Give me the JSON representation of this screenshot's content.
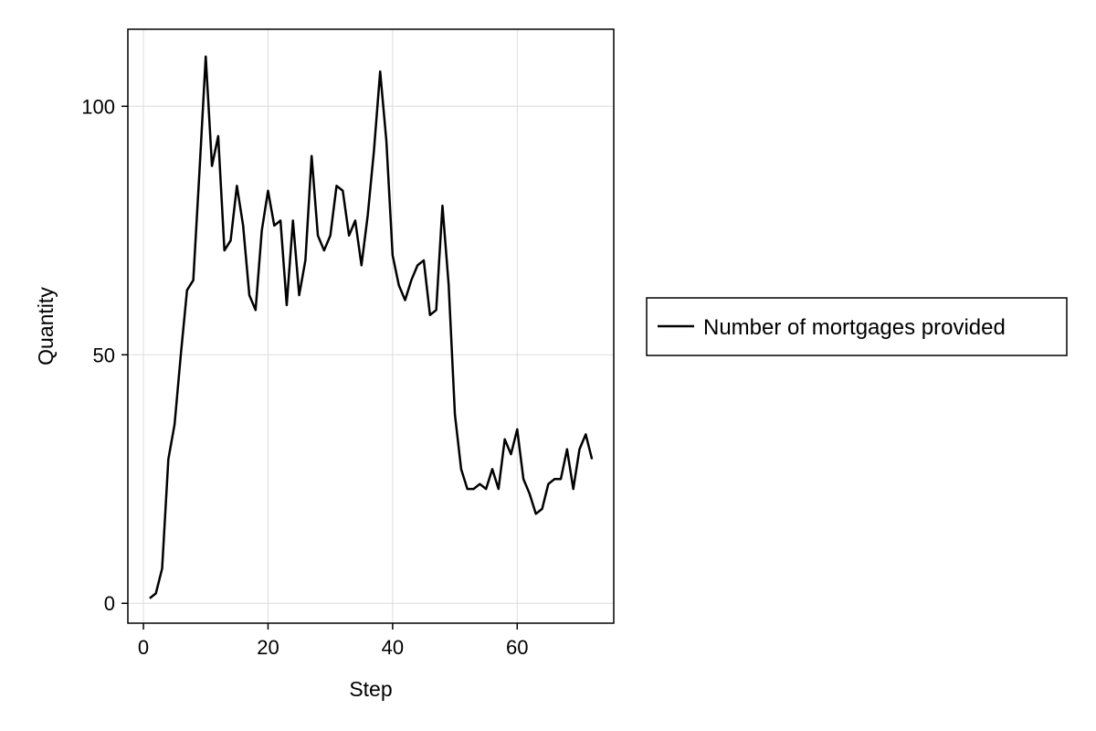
{
  "chart_data": {
    "type": "line",
    "title": "",
    "xlabel": "Step",
    "ylabel": "Quantity",
    "xlim": [
      -2.5,
      75.5
    ],
    "ylim": [
      -4,
      115.5
    ],
    "x_ticks": [
      0,
      20,
      40,
      60
    ],
    "y_ticks": [
      0,
      50,
      100
    ],
    "grid": true,
    "legend_position": "right",
    "series": [
      {
        "name": "Number of mortgages provided",
        "color": "#000000",
        "x": [
          1,
          2,
          3,
          4,
          5,
          6,
          7,
          8,
          9,
          10,
          11,
          12,
          13,
          14,
          15,
          16,
          17,
          18,
          19,
          20,
          21,
          22,
          23,
          24,
          25,
          26,
          27,
          28,
          29,
          30,
          31,
          32,
          33,
          34,
          35,
          36,
          37,
          38,
          39,
          40,
          41,
          42,
          43,
          44,
          45,
          46,
          47,
          48,
          49,
          50,
          51,
          52,
          53,
          54,
          55,
          56,
          57,
          58,
          59,
          60,
          61,
          62,
          63,
          64,
          65,
          66,
          67,
          68,
          69,
          70,
          71,
          72
        ],
        "y": [
          1,
          2,
          7,
          29,
          36,
          50,
          63,
          65,
          87,
          110,
          88,
          94,
          71,
          73,
          84,
          76,
          62,
          59,
          75,
          83,
          76,
          77,
          60,
          77,
          62,
          69,
          90,
          74,
          71,
          74,
          84,
          83,
          74,
          77,
          68,
          78,
          91,
          107,
          93,
          70,
          64,
          61,
          65,
          68,
          69,
          58,
          59,
          80,
          64,
          38,
          27,
          23,
          23,
          24,
          23,
          27,
          23,
          33,
          30,
          35,
          25,
          22,
          18,
          19,
          24,
          25,
          25,
          31,
          23,
          31,
          34,
          29
        ]
      }
    ]
  }
}
